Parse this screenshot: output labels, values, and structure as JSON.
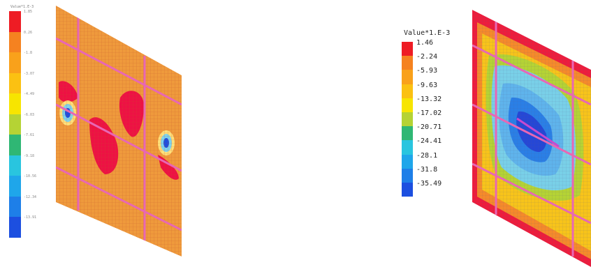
{
  "left_panel": {
    "legend": {
      "title": "Value*1.E-3",
      "labels": [
        "1.85",
        "0.26",
        "-1.8",
        "-3.07",
        "-4.49",
        "-6.03",
        "-7.61",
        "-9.18",
        "-10.56",
        "-12.34",
        "-13.91"
      ],
      "colors": [
        "#ee1c24",
        "#f58220",
        "#f9a11b",
        "#fbc112",
        "#f7e500",
        "#b5d334",
        "#2fb774",
        "#29c5df",
        "#1fa6ea",
        "#1e7fe8",
        "#1c4fe0"
      ]
    }
  },
  "right_panel": {
    "legend": {
      "title": "Value*1.E-3",
      "labels": [
        "1.46",
        "-2.24",
        "-5.93",
        "-9.63",
        "-13.32",
        "-17.02",
        "-20.71",
        "-24.41",
        "-28.1",
        "-31.8",
        "-35.49"
      ],
      "colors": [
        "#ee1c24",
        "#f58220",
        "#f9a11b",
        "#fbc112",
        "#f7e500",
        "#b5d334",
        "#2fb774",
        "#29c5df",
        "#1fa6ea",
        "#1e7fe8",
        "#1c4fe0"
      ]
    }
  }
}
